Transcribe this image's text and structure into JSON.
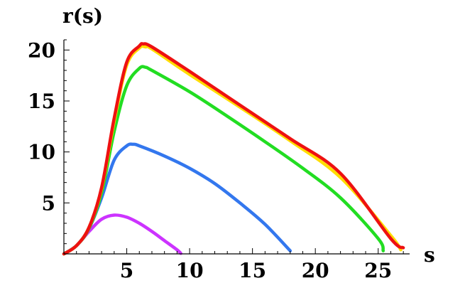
{
  "chart_data": {
    "type": "line",
    "title": "",
    "xlabel": "s",
    "ylabel": "r(s)",
    "xlim": [
      0,
      27.5
    ],
    "ylim": [
      0,
      21
    ],
    "x_ticks": [
      5,
      10,
      15,
      20,
      25
    ],
    "y_ticks": [
      5,
      10,
      15,
      20
    ],
    "grid": false,
    "series": [
      {
        "color": "#cc33ff",
        "points": [
          [
            0,
            0
          ],
          [
            1,
            0.8
          ],
          [
            2,
            2.2
          ],
          [
            3,
            3.4
          ],
          [
            4,
            3.8
          ],
          [
            5,
            3.6
          ],
          [
            6,
            3.0
          ],
          [
            7,
            2.2
          ],
          [
            8,
            1.3
          ],
          [
            9,
            0.4
          ],
          [
            9.3,
            0.05
          ]
        ]
      },
      {
        "color": "#3377ee",
        "points": [
          [
            0,
            0
          ],
          [
            1,
            0.8
          ],
          [
            2,
            2.5
          ],
          [
            3,
            5.5
          ],
          [
            4,
            9.2
          ],
          [
            5,
            10.6
          ],
          [
            5.5,
            10.75
          ],
          [
            6,
            10.6
          ],
          [
            8,
            9.6
          ],
          [
            10,
            8.4
          ],
          [
            12,
            6.9
          ],
          [
            14,
            5.0
          ],
          [
            16,
            2.9
          ],
          [
            18,
            0.3
          ]
        ]
      },
      {
        "color": "#22dd22",
        "points": [
          [
            0,
            0
          ],
          [
            1,
            0.8
          ],
          [
            2,
            2.5
          ],
          [
            3,
            6
          ],
          [
            4,
            12
          ],
          [
            5,
            16.5
          ],
          [
            6,
            18.2
          ],
          [
            6.5,
            18.3
          ],
          [
            7,
            18.0
          ],
          [
            10,
            15.9
          ],
          [
            13,
            13.5
          ],
          [
            16,
            11.0
          ],
          [
            19,
            8.4
          ],
          [
            22,
            5.5
          ],
          [
            25,
            1.5
          ],
          [
            25.4,
            0.3
          ]
        ]
      },
      {
        "color": "#ffdd00",
        "points": [
          [
            0,
            0
          ],
          [
            1,
            0.8
          ],
          [
            2,
            2.6
          ],
          [
            3,
            6.4
          ],
          [
            4,
            13
          ],
          [
            5,
            18.5
          ],
          [
            6,
            20.2
          ],
          [
            6.5,
            20.3
          ],
          [
            7,
            20.1
          ],
          [
            10,
            17.6
          ],
          [
            14,
            14.4
          ],
          [
            18,
            11.1
          ],
          [
            22,
            7.5
          ],
          [
            26,
            1.8
          ],
          [
            26.8,
            0.4
          ]
        ]
      },
      {
        "color": "#ee1111",
        "points": [
          [
            0,
            0
          ],
          [
            1,
            0.8
          ],
          [
            2,
            2.6
          ],
          [
            3,
            6.5
          ],
          [
            4,
            13.3
          ],
          [
            5,
            18.8
          ],
          [
            6,
            20.4
          ],
          [
            6.3,
            20.6
          ],
          [
            7,
            20.3
          ],
          [
            10,
            17.9
          ],
          [
            14,
            14.6
          ],
          [
            18,
            11.3
          ],
          [
            22,
            7.9
          ],
          [
            26,
            1.5
          ],
          [
            27,
            0.6
          ]
        ]
      }
    ]
  }
}
